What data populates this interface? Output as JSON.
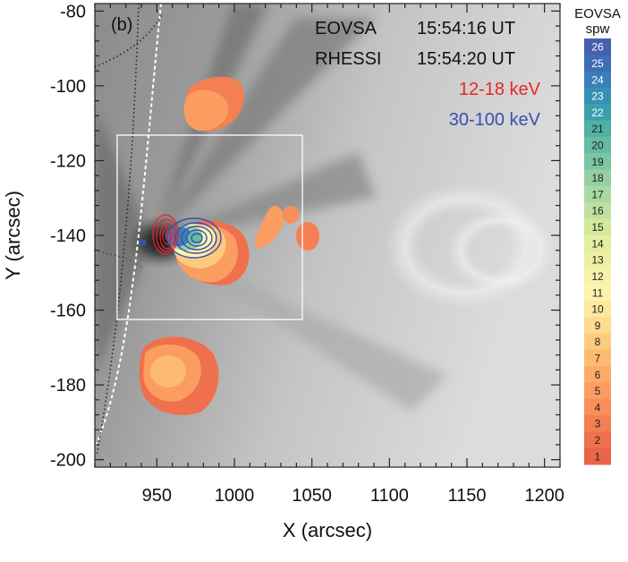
{
  "panel_label": "(b)",
  "annotations": {
    "eovsa_label": "EOVSA",
    "eovsa_time": "15:54:16 UT",
    "rhessi_label": "RHESSI",
    "rhessi_time": "15:54:20 UT",
    "low_energy": "12-18 keV",
    "high_energy": "30-100 keV",
    "low_energy_color": "#e8262a",
    "high_energy_color": "#3a4fb0"
  },
  "axes": {
    "xlabel": "X (arcsec)",
    "ylabel": "Y (arcsec)",
    "xlim": [
      910,
      1210
    ],
    "ylim": [
      -202,
      -78
    ],
    "xticks": [
      "950",
      "1000",
      "1050",
      "1100",
      "1150",
      "1200"
    ],
    "yticks": [
      "-80",
      "-100",
      "-120",
      "-140",
      "-160",
      "-180",
      "-200"
    ]
  },
  "colorbar": {
    "title_line1": "EOVSA",
    "title_line2": "spw",
    "levels": [
      "26",
      "25",
      "24",
      "23",
      "22",
      "21",
      "20",
      "19",
      "18",
      "17",
      "16",
      "15",
      "14",
      "13",
      "12",
      "11",
      "10",
      "9",
      "8",
      "7",
      "6",
      "5",
      "4",
      "3",
      "2",
      "1"
    ],
    "colors": [
      "#4560ae",
      "#3f6db3",
      "#3a7eb8",
      "#3790b4",
      "#3ba0ad",
      "#4fb0a3",
      "#66bca2",
      "#7dc6a3",
      "#95cfa4",
      "#aad8a3",
      "#bfe0a0",
      "#d3e89d",
      "#e3ef9f",
      "#efefa3",
      "#f7f2ab",
      "#fcf3b0",
      "#fde8a0",
      "#fedb8e",
      "#fdcb7e",
      "#fdbb72",
      "#fcac68",
      "#fb9d60",
      "#f98f58",
      "#f47f52",
      "#ef704c",
      "#ea6448"
    ]
  }
}
